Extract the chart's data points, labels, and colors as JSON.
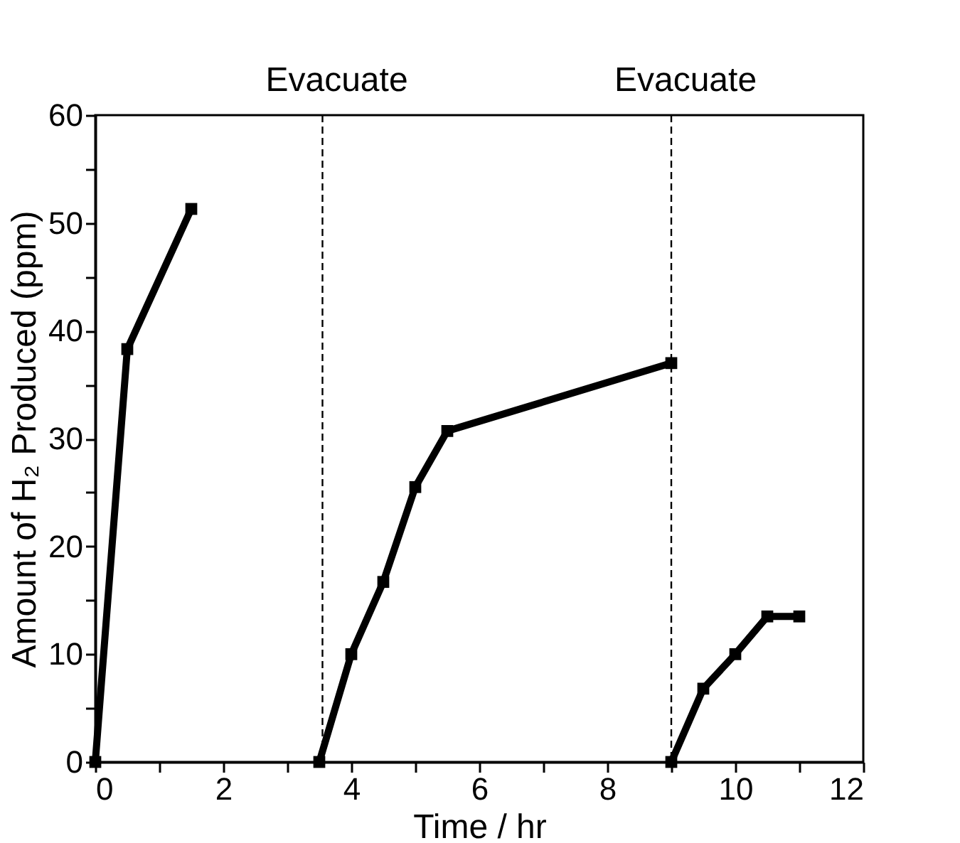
{
  "chart_data": {
    "type": "line",
    "xlabel": "Time / hr",
    "ylabel": "Amount of H₂ Produced (ppm)",
    "series": [
      {
        "color": "#000000",
        "x": [
          0,
          0.5,
          1.5
        ],
        "values": [
          0,
          38.3,
          51.3
        ]
      },
      {
        "color": "#000000",
        "x": [
          3.5,
          4,
          4.5,
          5,
          5.5,
          9
        ],
        "values": [
          0,
          10,
          16.7,
          25.5,
          30.7,
          37
        ]
      },
      {
        "color": "#000000",
        "x": [
          9,
          9.5,
          10,
          10.5,
          11
        ],
        "values": [
          0,
          6.8,
          10,
          13.5,
          13.5
        ]
      }
    ],
    "xlim": [
      0,
      12
    ],
    "ylim": [
      0,
      60
    ],
    "xticks": [
      0,
      {
        "value": 1,
        "label": null
      },
      2,
      {
        "value": 3,
        "label": null
      },
      4,
      {
        "value": 5,
        "label": null
      },
      6,
      {
        "value": 7,
        "label": null
      },
      8,
      {
        "value": 9,
        "label": null
      },
      10,
      {
        "value": 11,
        "label": null
      },
      12
    ],
    "yticks": [
      0,
      {
        "value": 5,
        "label": null
      },
      10,
      {
        "value": 15,
        "label": null
      },
      20,
      {
        "value": 25,
        "label": null
      },
      30,
      {
        "value": 35,
        "label": null
      },
      40,
      {
        "value": 45,
        "label": null
      },
      50,
      {
        "value": 55,
        "label": null
      },
      60
    ],
    "ref_lines": [
      {
        "axis": "x",
        "value": 3.55,
        "label": "Evacuate",
        "color": "#000000",
        "line_style": "dashed"
      },
      {
        "axis": "x",
        "value": 9,
        "label": "Evacuate",
        "color": "#000000",
        "line_style": "dashed"
      }
    ],
    "marker": "square",
    "line_style": "solid",
    "grid": false
  }
}
